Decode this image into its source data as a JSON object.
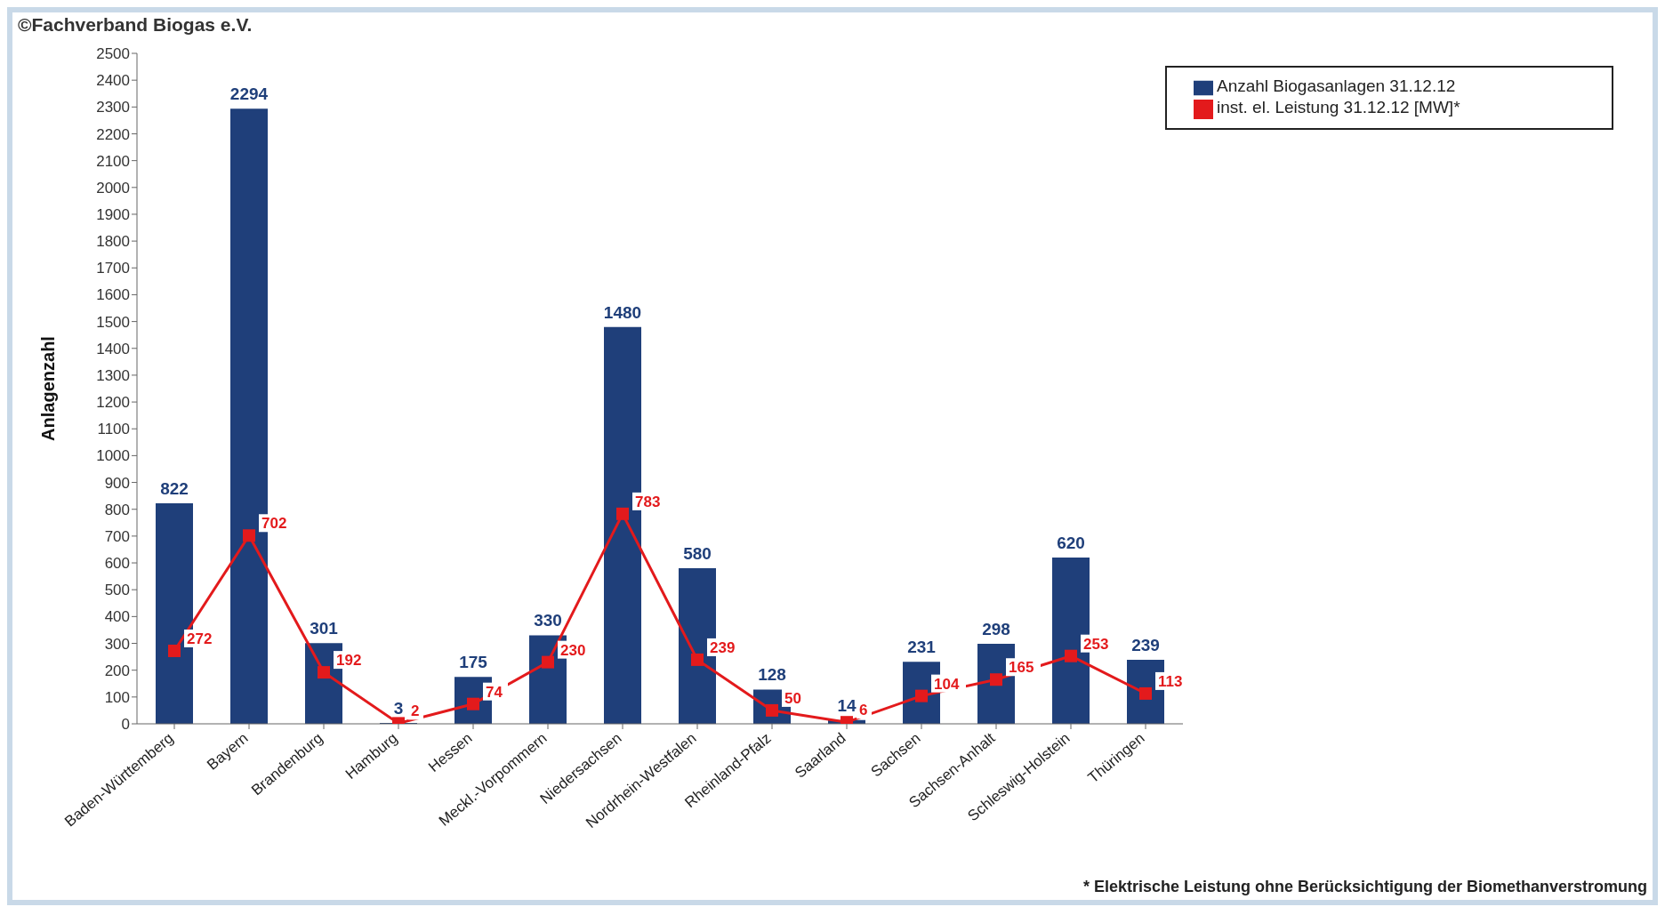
{
  "chart_data": {
    "type": "bar",
    "ylabel": "Anlagenzahl",
    "categories": [
      "Baden-Württemberg",
      "Bayern",
      "Brandenburg",
      "Hamburg",
      "Hessen",
      "Meckl.-Vorpommern",
      "Niedersachsen",
      "Nordrhein-Westfalen",
      "Rheinland-Pfalz",
      "Saarland",
      "Sachsen",
      "Sachsen-Anhalt",
      "Schleswig-Holstein",
      "Thüringen"
    ],
    "series": [
      {
        "name": "Anzahl Biogasanlagen 31.12.12",
        "color": "#1f3f7a",
        "values": [
          822,
          2294,
          301,
          3,
          175,
          330,
          1480,
          580,
          128,
          14,
          231,
          298,
          620,
          239
        ]
      },
      {
        "name": "inst. el. Leistung 31.12.12 [MW]*",
        "type": "line",
        "color": "#e31a1c",
        "marker": "square",
        "values": [
          272,
          702,
          192,
          2,
          74,
          230,
          783,
          239,
          50,
          6,
          104,
          165,
          253,
          113
        ]
      }
    ],
    "ylim": [
      0,
      2500
    ],
    "yticks": [
      0,
      100,
      200,
      300,
      400,
      500,
      600,
      700,
      800,
      900,
      1000,
      1100,
      1200,
      1300,
      1400,
      1500,
      1600,
      1700,
      1800,
      1900,
      2000,
      2100,
      2200,
      2300,
      2400,
      2500
    ],
    "grid": false,
    "legend": "top right",
    "data_labels": true,
    "annotations": [
      "©Fachverband Biogas e.V.",
      "* Elektrische Leistung ohne Berücksichtigung der Biomethanverstromung"
    ]
  }
}
